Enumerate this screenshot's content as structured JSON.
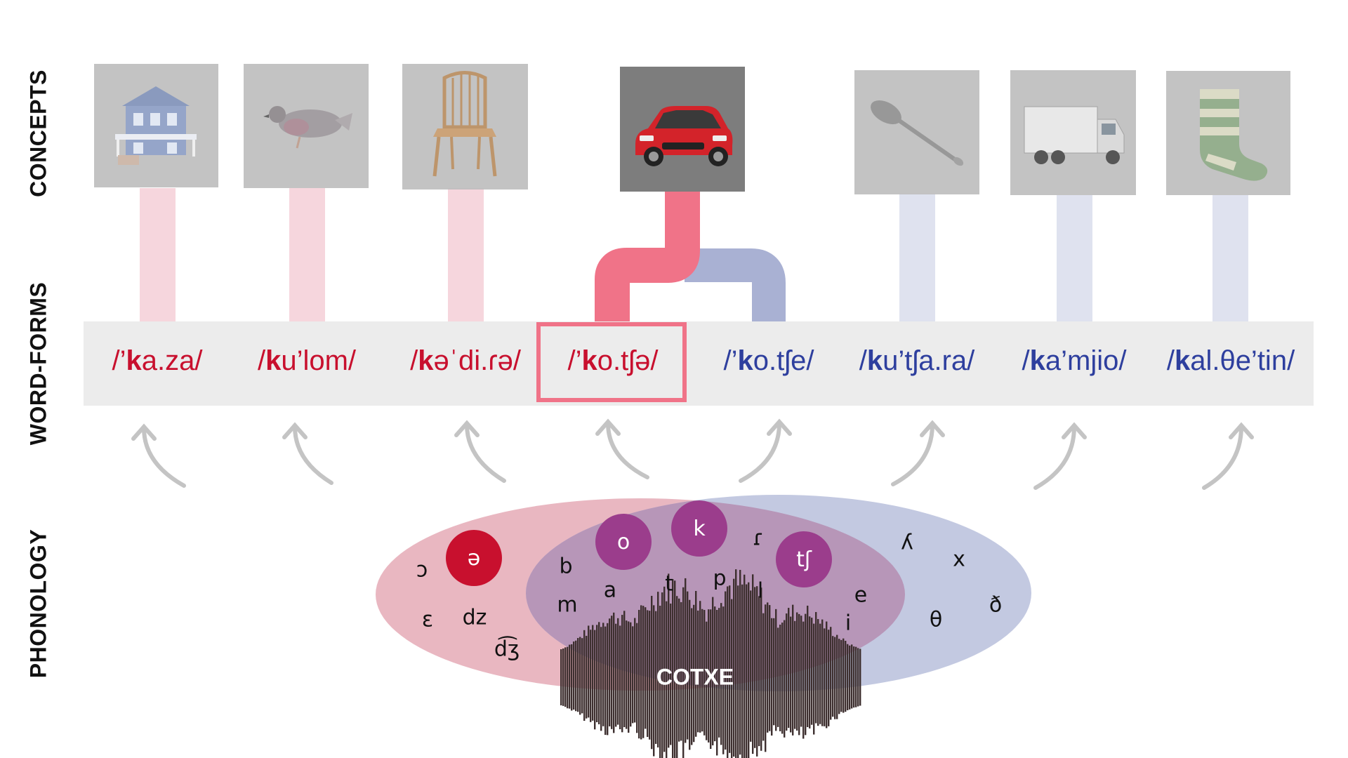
{
  "labels": {
    "concepts": "CONCEPTS",
    "wordforms": "WORD-FORMS",
    "phonology": "PHONOLOGY"
  },
  "colors": {
    "red": "#c8102e",
    "blue": "#2e3f9e",
    "pink_connector": "#f6d6dd",
    "blue_connector": "#dfe2ef",
    "active_red": "#f07388",
    "active_blue": "#a9b1d3",
    "highlight_border": "#f07388",
    "purple_circle": "#9b3d8c",
    "red_circle": "#c8102e"
  },
  "concepts": [
    {
      "name": "house-icon",
      "active": false
    },
    {
      "name": "pigeon-icon",
      "active": false
    },
    {
      "name": "chair-icon",
      "active": false
    },
    {
      "name": "car-icon",
      "active": true
    },
    {
      "name": "spoon-icon",
      "active": false
    },
    {
      "name": "truck-icon",
      "active": false
    },
    {
      "name": "sock-icon",
      "active": false
    }
  ],
  "wordforms": [
    {
      "pre": "/’",
      "bold": "k",
      "post": "a.za/",
      "color": "red"
    },
    {
      "pre": "/",
      "bold": "k",
      "post": "u’lom/",
      "color": "red"
    },
    {
      "pre": "/",
      "bold": "k",
      "post": "əˈdi.ɾə/",
      "color": "red"
    },
    {
      "pre": "/’",
      "bold": "k",
      "post": "o.tʃə/",
      "color": "red",
      "highlighted": true
    },
    {
      "pre": "/’",
      "bold": "k",
      "post": "o.tʃe/",
      "color": "blue"
    },
    {
      "pre": "/",
      "bold": "k",
      "post": "u’tʃa.ra/",
      "color": "blue"
    },
    {
      "pre": "/",
      "bold": "k",
      "post": "a’mjio/",
      "color": "blue"
    },
    {
      "pre": "/",
      "bold": "k",
      "post": "al.θe’tin/",
      "color": "blue"
    }
  ],
  "phonology": {
    "circles": [
      {
        "symbol": "ə",
        "kind": "red"
      },
      {
        "symbol": "o",
        "kind": "purple"
      },
      {
        "symbol": "k",
        "kind": "purple"
      },
      {
        "symbol": "tʃ",
        "kind": "purple"
      }
    ],
    "symbols": [
      "ɔ",
      "ɛ",
      "dz",
      "d͡ʒ",
      "b",
      "m",
      "a",
      "t",
      "p",
      "ɾ",
      "l",
      "e",
      "i",
      "ʎ",
      "x",
      "θ",
      "ð"
    ],
    "waveform_label": "COTXE"
  }
}
